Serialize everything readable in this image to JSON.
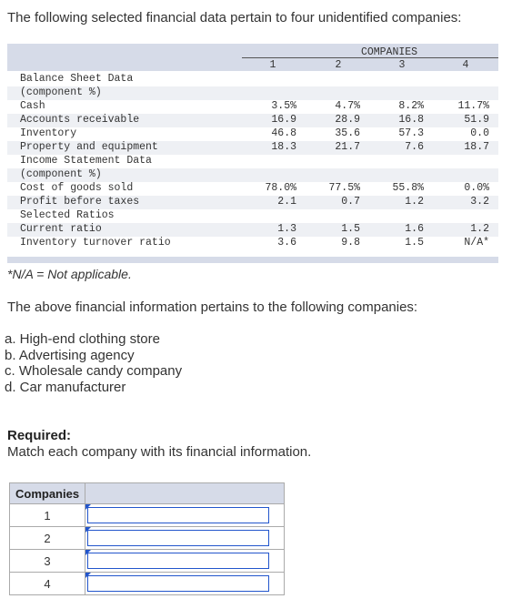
{
  "intro": "The following selected financial data pertain to four unidentified companies:",
  "table": {
    "companies_header": "COMPANIES",
    "columns": [
      "1",
      "2",
      "3",
      "4"
    ],
    "rows": [
      {
        "label": "Balance Sheet Data",
        "values": [
          "",
          "",
          "",
          ""
        ]
      },
      {
        "label": "(component %)",
        "values": [
          "",
          "",
          "",
          ""
        ]
      },
      {
        "label": "Cash",
        "values": [
          "3.5%",
          "4.7%",
          "8.2%",
          "11.7%"
        ]
      },
      {
        "label": "Accounts receivable",
        "values": [
          "16.9",
          "28.9",
          "16.8",
          "51.9"
        ]
      },
      {
        "label": "Inventory",
        "values": [
          "46.8",
          "35.6",
          "57.3",
          "0.0"
        ]
      },
      {
        "label": "Property and equipment",
        "values": [
          "18.3",
          "21.7",
          "7.6",
          "18.7"
        ]
      },
      {
        "label": "Income Statement Data",
        "values": [
          "",
          "",
          "",
          ""
        ]
      },
      {
        "label": "(component %)",
        "values": [
          "",
          "",
          "",
          ""
        ]
      },
      {
        "label": "Cost of goods sold",
        "values": [
          "78.0%",
          "77.5%",
          "55.8%",
          "0.0%"
        ]
      },
      {
        "label": "Profit before taxes",
        "values": [
          "2.1",
          "0.7",
          "1.2",
          "3.2"
        ]
      },
      {
        "label": "Selected Ratios",
        "values": [
          "",
          "",
          "",
          ""
        ]
      },
      {
        "label": "Current ratio",
        "values": [
          "1.3",
          "1.5",
          "1.6",
          "1.2"
        ]
      },
      {
        "label": "Inventory turnover ratio",
        "values": [
          "3.6",
          "9.8",
          "1.5",
          "N/A*"
        ]
      }
    ]
  },
  "footnote": "*N/A = Not applicable.",
  "pertains": "The above financial information pertains to the following companies:",
  "options": [
    "a. High-end clothing store",
    "b. Advertising agency",
    "c. Wholesale candy company",
    "d. Car manufacturer"
  ],
  "required_title": "Required:",
  "required_text": "Match each company with its financial information.",
  "answer_table": {
    "header": "Companies",
    "rows": [
      "1",
      "2",
      "3",
      "4"
    ]
  }
}
